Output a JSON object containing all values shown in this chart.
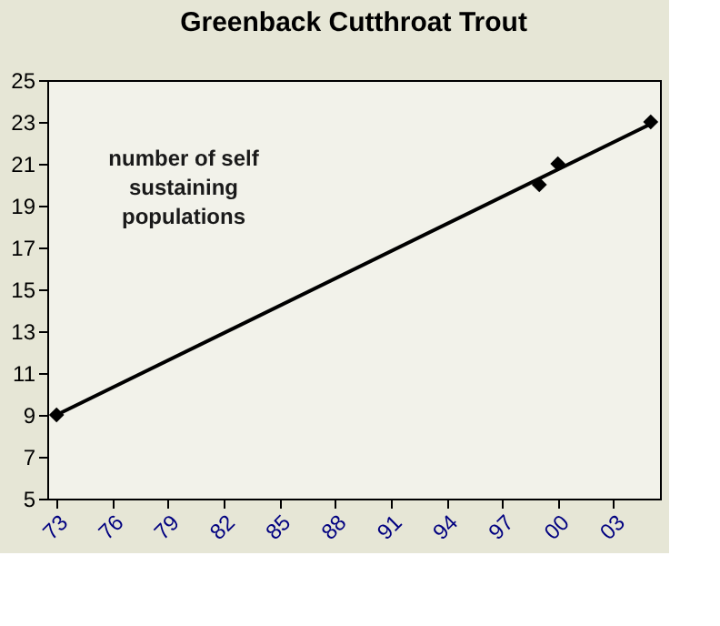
{
  "chart_data": {
    "type": "scatter",
    "title": "Greenback Cutthroat Trout",
    "x": [
      1973,
      1999,
      2000,
      2005
    ],
    "series": [
      {
        "color": "#000000",
        "marker": "diamond",
        "values": [
          9,
          20,
          21,
          23
        ]
      },
      {
        "type": "line",
        "color": "#000000",
        "line_style": "solid",
        "x": [
          1973,
          2005
        ],
        "values": [
          9.0,
          22.9
        ]
      }
    ],
    "xlim": [
      1972.5,
      2005.5
    ],
    "xticks": [
      {
        "value": 1973,
        "label": "73"
      },
      {
        "value": 1976,
        "label": "76"
      },
      {
        "value": 1979,
        "label": "79"
      },
      {
        "value": 1982,
        "label": "82"
      },
      {
        "value": 1985,
        "label": "85"
      },
      {
        "value": 1988,
        "label": "88"
      },
      {
        "value": 1991,
        "label": "91"
      },
      {
        "value": 1994,
        "label": "94"
      },
      {
        "value": 1997,
        "label": "97"
      },
      {
        "value": 2000,
        "label": "00"
      },
      {
        "value": 2003,
        "label": "03"
      }
    ],
    "ylim": [
      5,
      25
    ],
    "yticks": [
      5,
      7,
      9,
      11,
      13,
      15,
      17,
      19,
      21,
      23,
      25
    ],
    "annotations": [
      "number of self\nsustaining\npopulations"
    ],
    "grid": false
  }
}
